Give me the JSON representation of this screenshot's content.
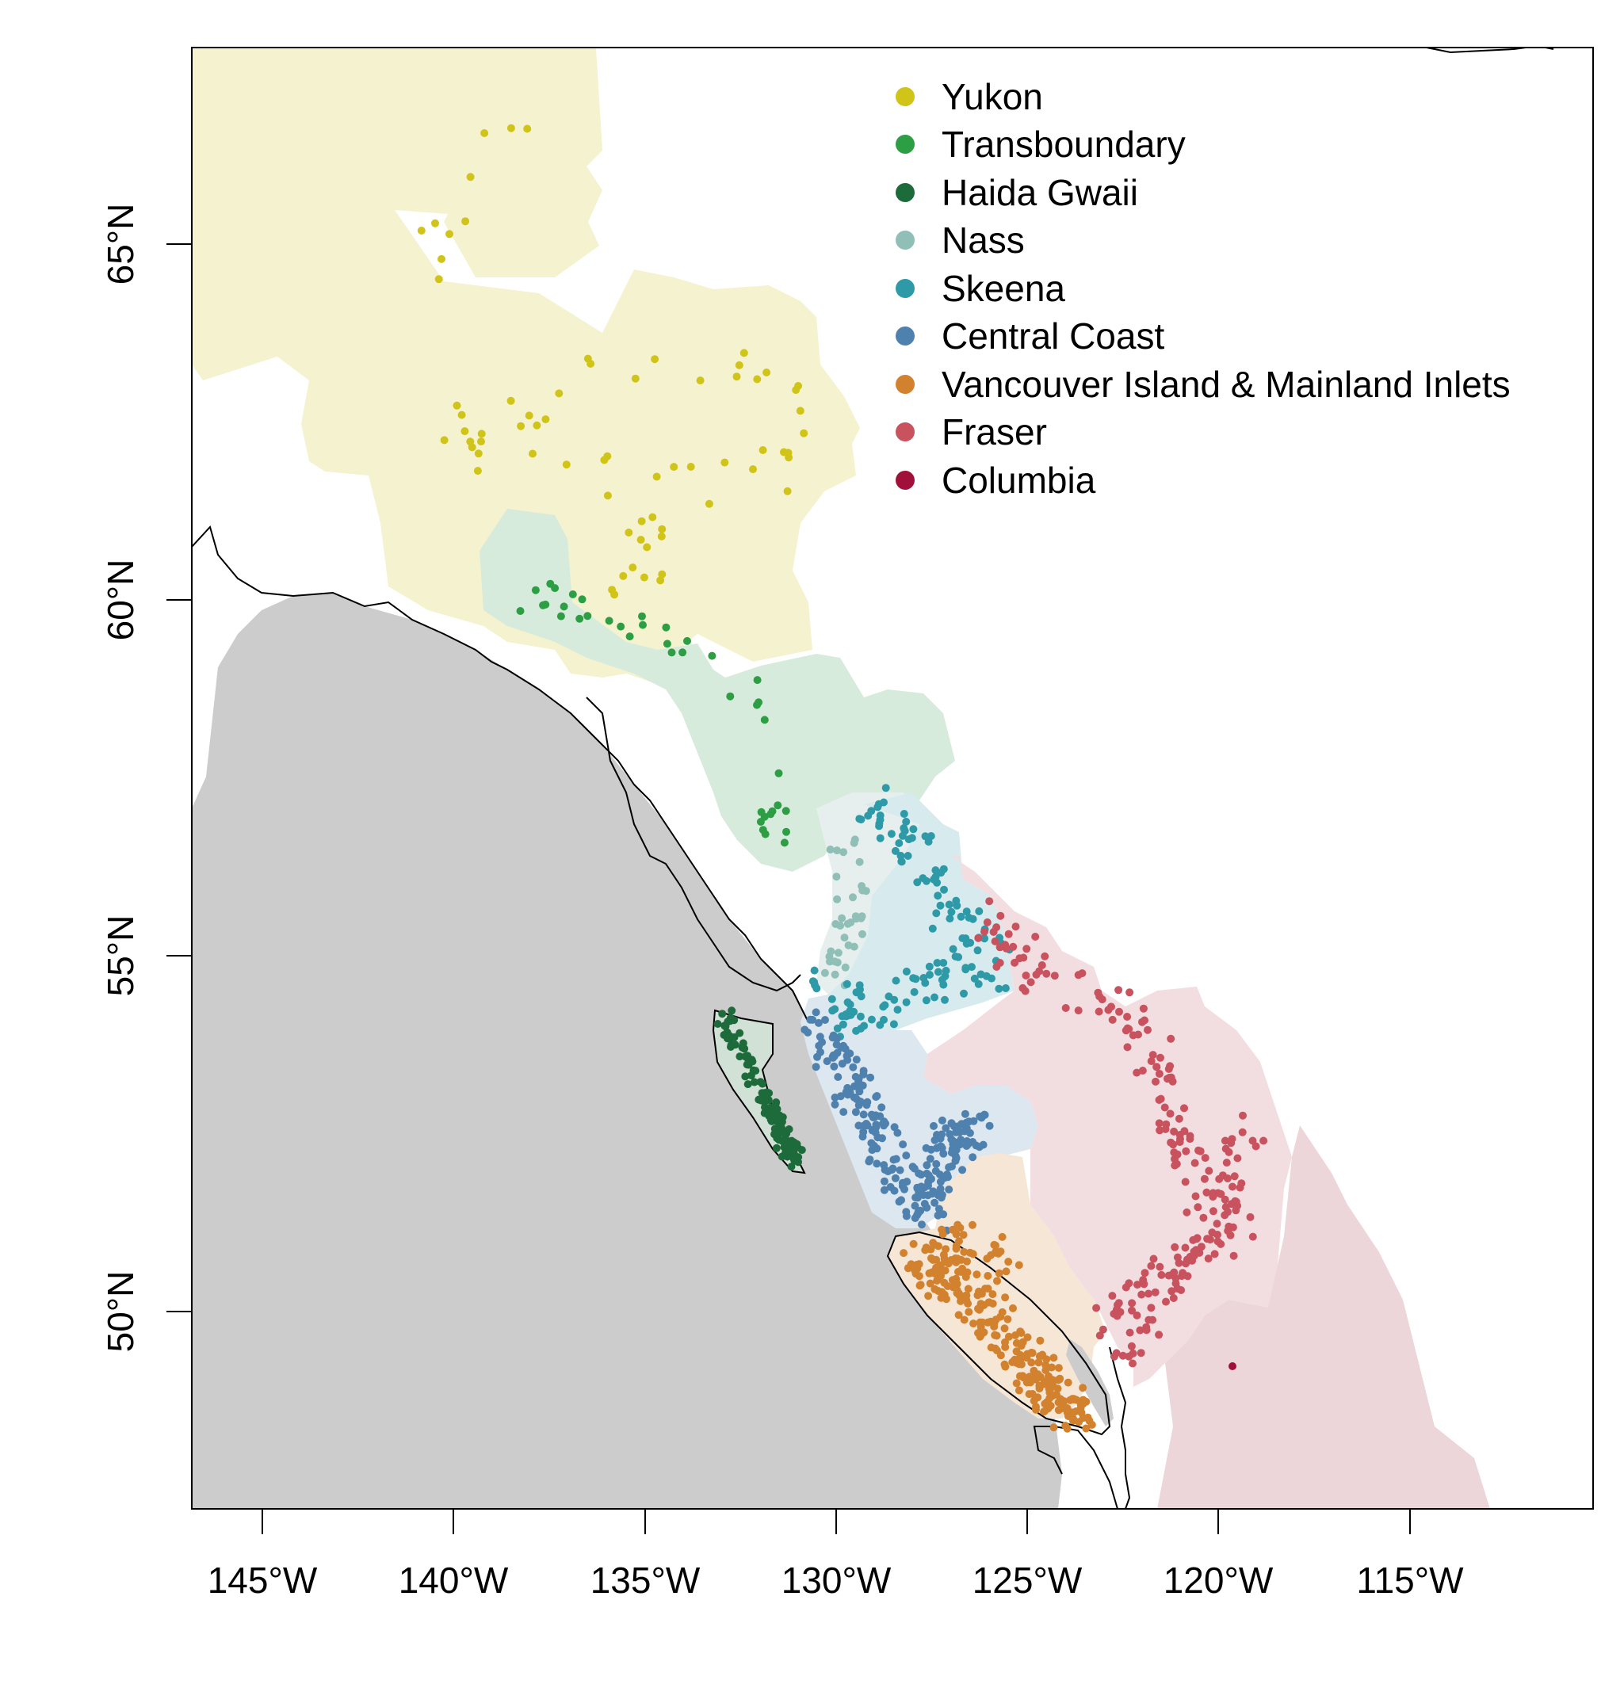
{
  "map": {
    "x_axis": {
      "ticks": [
        {
          "value": -145,
          "label": "145°W"
        },
        {
          "value": -140,
          "label": "140°W"
        },
        {
          "value": -135,
          "label": "135°W"
        },
        {
          "value": -130,
          "label": "130°W"
        },
        {
          "value": -125,
          "label": "125°W"
        },
        {
          "value": -120,
          "label": "120°W"
        },
        {
          "value": -115,
          "label": "115°W"
        }
      ]
    },
    "y_axis": {
      "ticks": [
        {
          "value": 50,
          "label": "50°N"
        },
        {
          "value": 55,
          "label": "55°N"
        },
        {
          "value": 60,
          "label": "60°N"
        },
        {
          "value": 65,
          "label": "65°N"
        }
      ]
    },
    "colors": {
      "ocean": "#cccccc",
      "land": "#ffffff",
      "coastline": "#000000"
    },
    "legend": {
      "placement": "top-right inside map",
      "items": [
        {
          "label": "Yukon",
          "color": "#d1c418",
          "region_fill": "#f5f2cf"
        },
        {
          "label": "Transboundary",
          "color": "#2e9e44",
          "region_fill": "#d6ebdc"
        },
        {
          "label": "Haida Gwaii",
          "color": "#1d6b3a",
          "region_fill": "#d2e1d6"
        },
        {
          "label": "Nass",
          "color": "#8fbfb6",
          "region_fill": "#e6efed"
        },
        {
          "label": "Skeena",
          "color": "#2e9aa8",
          "region_fill": "#d7ebee"
        },
        {
          "label": "Central Coast",
          "color": "#4f81ae",
          "region_fill": "#dde7ef"
        },
        {
          "label": "Vancouver Island & Mainland Inlets",
          "color": "#d2822e",
          "region_fill": "#f6e6d5"
        },
        {
          "label": "Fraser",
          "color": "#c8525e",
          "region_fill": "#f2dde0"
        },
        {
          "label": "Columbia",
          "color": "#a0103b",
          "region_fill": "#ecd6da"
        }
      ]
    }
  }
}
